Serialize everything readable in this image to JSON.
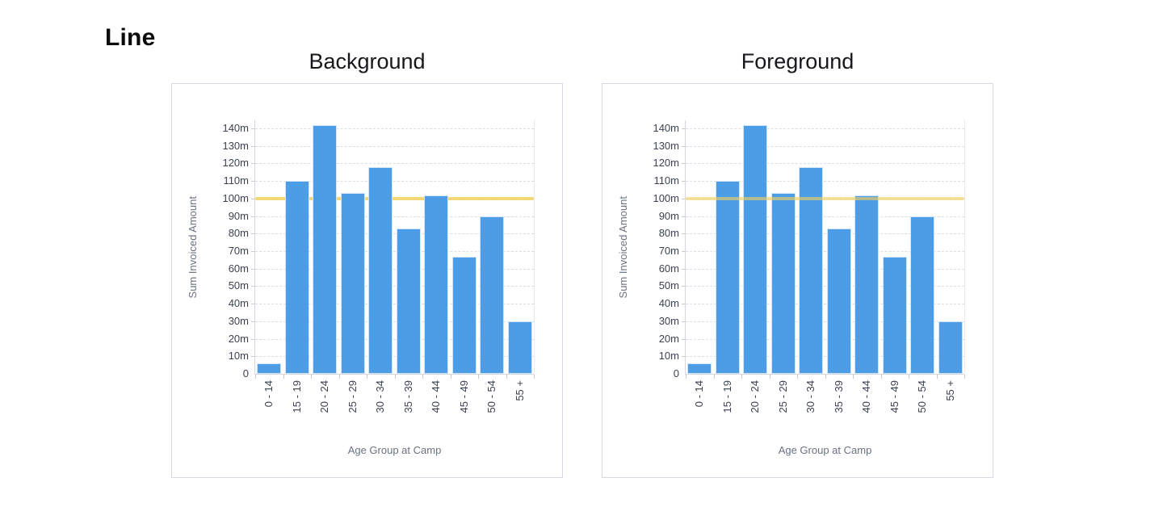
{
  "page": {
    "heading": "Line"
  },
  "chart_data": [
    {
      "type": "bar",
      "title": "Background",
      "line_position": "background",
      "categories": [
        "0 - 14",
        "15 - 19",
        "20 - 24",
        "25 - 29",
        "30 - 34",
        "35 - 39",
        "40 - 44",
        "45 - 49",
        "50 - 54",
        "55 +"
      ],
      "values": [
        6,
        110,
        142,
        103,
        118,
        83,
        102,
        67,
        90,
        30
      ],
      "xlabel": "Age Group at Camp",
      "ylabel": "Sum Invoiced Amount",
      "ylim": [
        0,
        145
      ],
      "ytick_step": 10,
      "ytick_labels": [
        "0",
        "10m",
        "20m",
        "30m",
        "40m",
        "50m",
        "60m",
        "70m",
        "80m",
        "90m",
        "100m",
        "110m",
        "120m",
        "130m",
        "140m"
      ],
      "grid": "horizontal-dashed",
      "legend": "none",
      "bar_color": "#4c9ce6",
      "reference_line": {
        "value": 100,
        "color": "#f2d05e"
      }
    },
    {
      "type": "bar",
      "title": "Foreground",
      "line_position": "foreground",
      "categories": [
        "0 - 14",
        "15 - 19",
        "20 - 24",
        "25 - 29",
        "30 - 34",
        "35 - 39",
        "40 - 44",
        "45 - 49",
        "50 - 54",
        "55 +"
      ],
      "values": [
        6,
        110,
        142,
        103,
        118,
        83,
        102,
        67,
        90,
        30
      ],
      "xlabel": "Age Group at Camp",
      "ylabel": "Sum Invoiced Amount",
      "ylim": [
        0,
        145
      ],
      "ytick_step": 10,
      "ytick_labels": [
        "0",
        "10m",
        "20m",
        "30m",
        "40m",
        "50m",
        "60m",
        "70m",
        "80m",
        "90m",
        "100m",
        "110m",
        "120m",
        "130m",
        "140m"
      ],
      "grid": "horizontal-dashed",
      "legend": "none",
      "bar_color": "#4c9ce6",
      "reference_line": {
        "value": 100,
        "color": "#f2d05e"
      }
    }
  ]
}
